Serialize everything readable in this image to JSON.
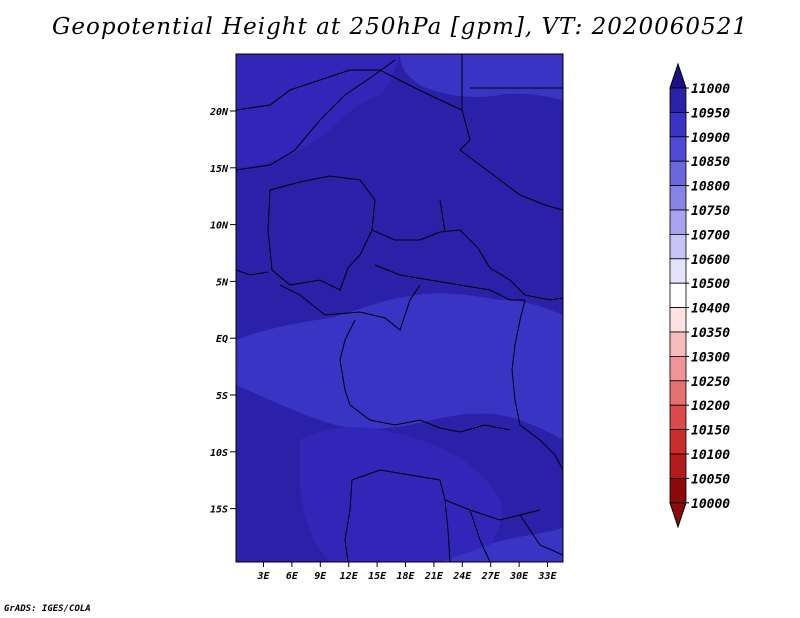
{
  "title": "Geopotential Height at 250hPa [gpm], VT: 2020060521",
  "credit": "GrADS: IGES/COLA",
  "map": {
    "lat_ticks": [
      "20N",
      "15N",
      "10N",
      "5N",
      "EQ",
      "5S",
      "10S",
      "15S"
    ],
    "lon_ticks": [
      "3E",
      "6E",
      "9E",
      "12E",
      "15E",
      "18E",
      "21E",
      "24E",
      "27E",
      "30E",
      "33E"
    ],
    "field_colors": {
      "dark": "#2b21a8",
      "mid": "#3126b8",
      "light": "#3a34c4"
    }
  },
  "colorbar": {
    "levels": [
      "11000",
      "10950",
      "10900",
      "10850",
      "10800",
      "10750",
      "10700",
      "10600",
      "10500",
      "10400",
      "10350",
      "10300",
      "10250",
      "10200",
      "10150",
      "10100",
      "10050",
      "10000"
    ],
    "colors": [
      "#1e0f8c",
      "#2b21a8",
      "#3a34c4",
      "#4f4bd2",
      "#6b67dc",
      "#8884e6",
      "#a7a3ef",
      "#c8c5f6",
      "#e4e3fb",
      "#ffffff",
      "#fde2e2",
      "#f7bcbc",
      "#ef9595",
      "#e57070",
      "#d94a4a",
      "#c92e2e",
      "#b11c1c",
      "#8c0a0a"
    ],
    "top_arrow_color": "#1e0f8c",
    "bottom_arrow_color": "#8c0a0a"
  }
}
